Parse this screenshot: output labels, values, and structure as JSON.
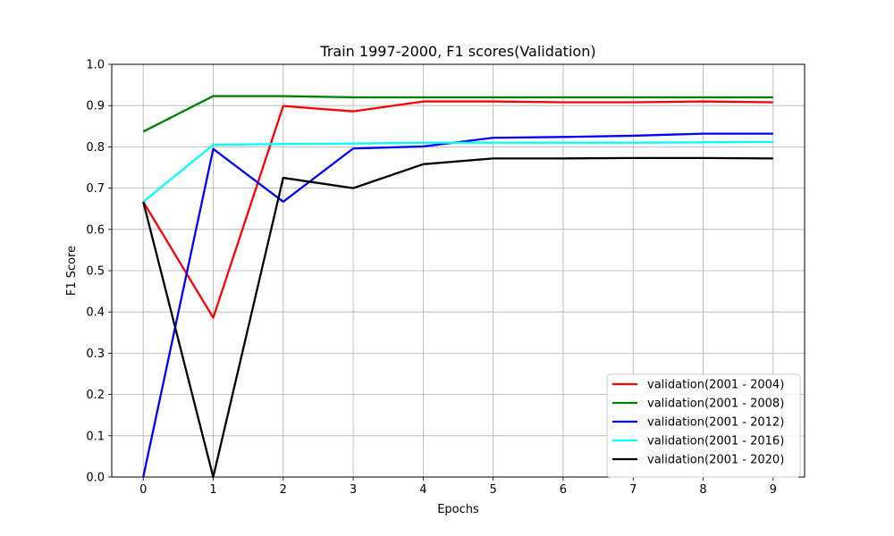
{
  "chart_data": {
    "type": "line",
    "title": "Train 1997-2000, F1 scores(Validation)",
    "xlabel": "Epochs",
    "ylabel": "F1 Score",
    "x": [
      0,
      1,
      2,
      3,
      4,
      5,
      6,
      7,
      8,
      9
    ],
    "xlim": [
      -0.45,
      9.45
    ],
    "ylim": [
      0.0,
      1.0
    ],
    "xticks": [
      "0",
      "1",
      "2",
      "3",
      "4",
      "5",
      "6",
      "7",
      "8",
      "9"
    ],
    "yticks": [
      "0.0",
      "0.1",
      "0.2",
      "0.3",
      "0.4",
      "0.5",
      "0.6",
      "0.7",
      "0.8",
      "0.9",
      "1.0"
    ],
    "grid": true,
    "legend_position": "lower-right",
    "series": [
      {
        "name": "validation(2001 - 2004)",
        "color": "#ff0000",
        "values": [
          0.667,
          0.386,
          0.899,
          0.886,
          0.91,
          0.91,
          0.908,
          0.908,
          0.91,
          0.908
        ]
      },
      {
        "name": "validation(2001 - 2008)",
        "color": "#008000",
        "values": [
          0.837,
          0.923,
          0.923,
          0.92,
          0.92,
          0.92,
          0.92,
          0.92,
          0.92,
          0.92
        ]
      },
      {
        "name": "validation(2001 - 2012)",
        "color": "#0000ff",
        "values": [
          0.0,
          0.795,
          0.667,
          0.796,
          0.801,
          0.822,
          0.824,
          0.827,
          0.832,
          0.832
        ]
      },
      {
        "name": "validation(2001 - 2016)",
        "color": "#00ffff",
        "values": [
          0.667,
          0.805,
          0.807,
          0.808,
          0.81,
          0.81,
          0.81,
          0.81,
          0.811,
          0.812
        ]
      },
      {
        "name": "validation(2001 - 2020)",
        "color": "#000000",
        "values": [
          0.667,
          0.0,
          0.725,
          0.7,
          0.758,
          0.772,
          0.772,
          0.773,
          0.773,
          0.772
        ]
      }
    ]
  }
}
